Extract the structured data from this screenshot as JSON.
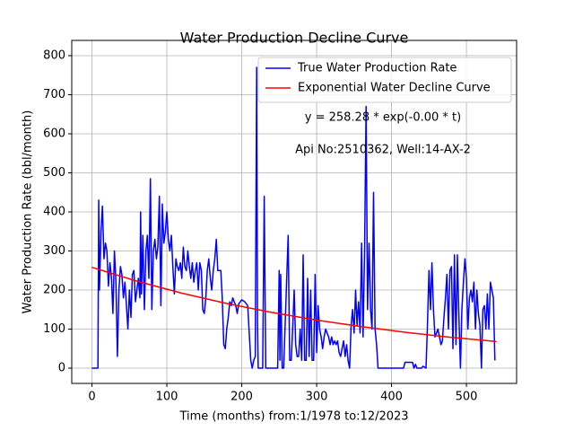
{
  "chart_data": {
    "type": "line",
    "title": "Water Production Decline Curve",
    "xlabel": "Time (months) from:1/1978 to:12/2023",
    "ylabel": "Water Production Rate (bbl/month)",
    "xlim": [
      -27,
      567
    ],
    "ylim": [
      -39,
      839
    ],
    "xticks": [
      0,
      100,
      200,
      300,
      400,
      500
    ],
    "yticks": [
      0,
      100,
      200,
      300,
      400,
      500,
      600,
      700,
      800
    ],
    "grid": true,
    "legend": "upper right",
    "annotations": [
      "y = 258.28 * exp(-0.00 * t)",
      "Api No:2510362, Well:14-AX-2"
    ],
    "series": [
      {
        "name": "True Water Production Rate",
        "color": "#0000ff",
        "x": [
          0,
          8,
          9,
          10,
          12,
          14,
          16,
          18,
          20,
          22,
          24,
          26,
          28,
          30,
          32,
          34,
          36,
          38,
          40,
          42,
          44,
          46,
          48,
          50,
          52,
          54,
          56,
          58,
          60,
          62,
          64,
          65,
          66,
          68,
          70,
          72,
          74,
          76,
          78,
          80,
          82,
          84,
          86,
          88,
          90,
          92,
          94,
          96,
          98,
          100,
          102,
          104,
          106,
          108,
          110,
          112,
          114,
          116,
          118,
          120,
          122,
          124,
          126,
          128,
          130,
          132,
          134,
          136,
          138,
          140,
          142,
          144,
          146,
          148,
          150,
          152,
          154,
          156,
          158,
          160,
          162,
          164,
          166,
          168,
          170,
          172,
          174,
          176,
          178,
          180,
          182,
          184,
          186,
          188,
          190,
          192,
          194,
          196,
          198,
          200,
          204,
          208,
          212,
          214,
          216,
          218,
          220,
          221,
          222,
          228,
          230,
          232,
          248,
          250,
          251,
          252,
          254,
          256,
          262,
          264,
          266,
          268,
          270,
          272,
          274,
          276,
          278,
          280,
          282,
          284,
          286,
          288,
          290,
          292,
          294,
          296,
          298,
          300,
          302,
          304,
          306,
          308,
          310,
          312,
          314,
          316,
          318,
          320,
          322,
          324,
          326,
          328,
          330,
          332,
          334,
          336,
          338,
          340,
          342,
          344,
          346,
          348,
          350,
          352,
          354,
          356,
          358,
          360,
          362,
          364,
          366,
          368,
          370,
          372,
          374,
          376,
          378,
          380,
          382,
          388,
          400,
          404,
          410,
          412,
          416,
          418,
          420,
          424,
          428,
          430,
          432,
          434,
          440,
          442,
          446,
          448,
          450,
          452,
          454,
          456,
          458,
          460,
          462,
          464,
          466,
          468,
          470,
          472,
          474,
          476,
          478,
          480,
          482,
          484,
          486,
          488,
          490,
          492,
          494,
          496,
          498,
          500,
          502,
          504,
          506,
          508,
          510,
          512,
          514,
          516,
          518,
          520,
          522,
          524,
          526,
          528,
          530,
          532,
          534,
          536,
          538
        ],
        "values": [
          0,
          0,
          430,
          200,
          350,
          415,
          280,
          320,
          300,
          210,
          270,
          230,
          140,
          300,
          220,
          30,
          200,
          260,
          240,
          180,
          220,
          160,
          100,
          200,
          130,
          240,
          250,
          170,
          200,
          230,
          180,
          400,
          190,
          340,
          150,
          300,
          340,
          230,
          485,
          150,
          300,
          330,
          280,
          310,
          440,
          160,
          420,
          320,
          350,
          400,
          330,
          300,
          340,
          260,
          190,
          280,
          260,
          250,
          270,
          230,
          310,
          260,
          250,
          300,
          260,
          230,
          270,
          220,
          250,
          270,
          200,
          270,
          250,
          150,
          140,
          180,
          250,
          280,
          230,
          200,
          250,
          280,
          330,
          250,
          250,
          250,
          180,
          60,
          50,
          100,
          130,
          170,
          160,
          180,
          170,
          160,
          140,
          165,
          170,
          175,
          170,
          160,
          20,
          0,
          20,
          30,
          770,
          120,
          0,
          0,
          440,
          0,
          0,
          250,
          20,
          240,
          0,
          0,
          340,
          20,
          20,
          100,
          200,
          60,
          30,
          30,
          100,
          20,
          290,
          20,
          20,
          230,
          30,
          200,
          20,
          20,
          240,
          40,
          160,
          100,
          80,
          50,
          80,
          100,
          90,
          80,
          60,
          80,
          60,
          70,
          60,
          70,
          40,
          30,
          50,
          70,
          30,
          60,
          20,
          0,
          110,
          150,
          90,
          200,
          110,
          170,
          90,
          320,
          80,
          300,
          670,
          150,
          320,
          150,
          100,
          450,
          100,
          60,
          0,
          0,
          0,
          0,
          0,
          0,
          0,
          15,
          15,
          15,
          15,
          0,
          10,
          0,
          0,
          5,
          0,
          110,
          250,
          150,
          270,
          150,
          80,
          90,
          100,
          80,
          60,
          70,
          130,
          180,
          240,
          100,
          250,
          260,
          50,
          290,
          60,
          290,
          130,
          0,
          150,
          220,
          280,
          230,
          100,
          180,
          200,
          170,
          220,
          100,
          200,
          140,
          110,
          0,
          150,
          160,
          100,
          190,
          100,
          220,
          200,
          180,
          20
        ]
      },
      {
        "name": "Exponential Water Decline Curve",
        "color": "#ff0000",
        "x": [
          0,
          60,
          120,
          180,
          240,
          300,
          360,
          420,
          480,
          540
        ],
        "values": [
          258.3,
          222.7,
          192.1,
          165.6,
          142.8,
          123.1,
          106.2,
          91.5,
          79.0,
          68.0
        ]
      }
    ]
  }
}
